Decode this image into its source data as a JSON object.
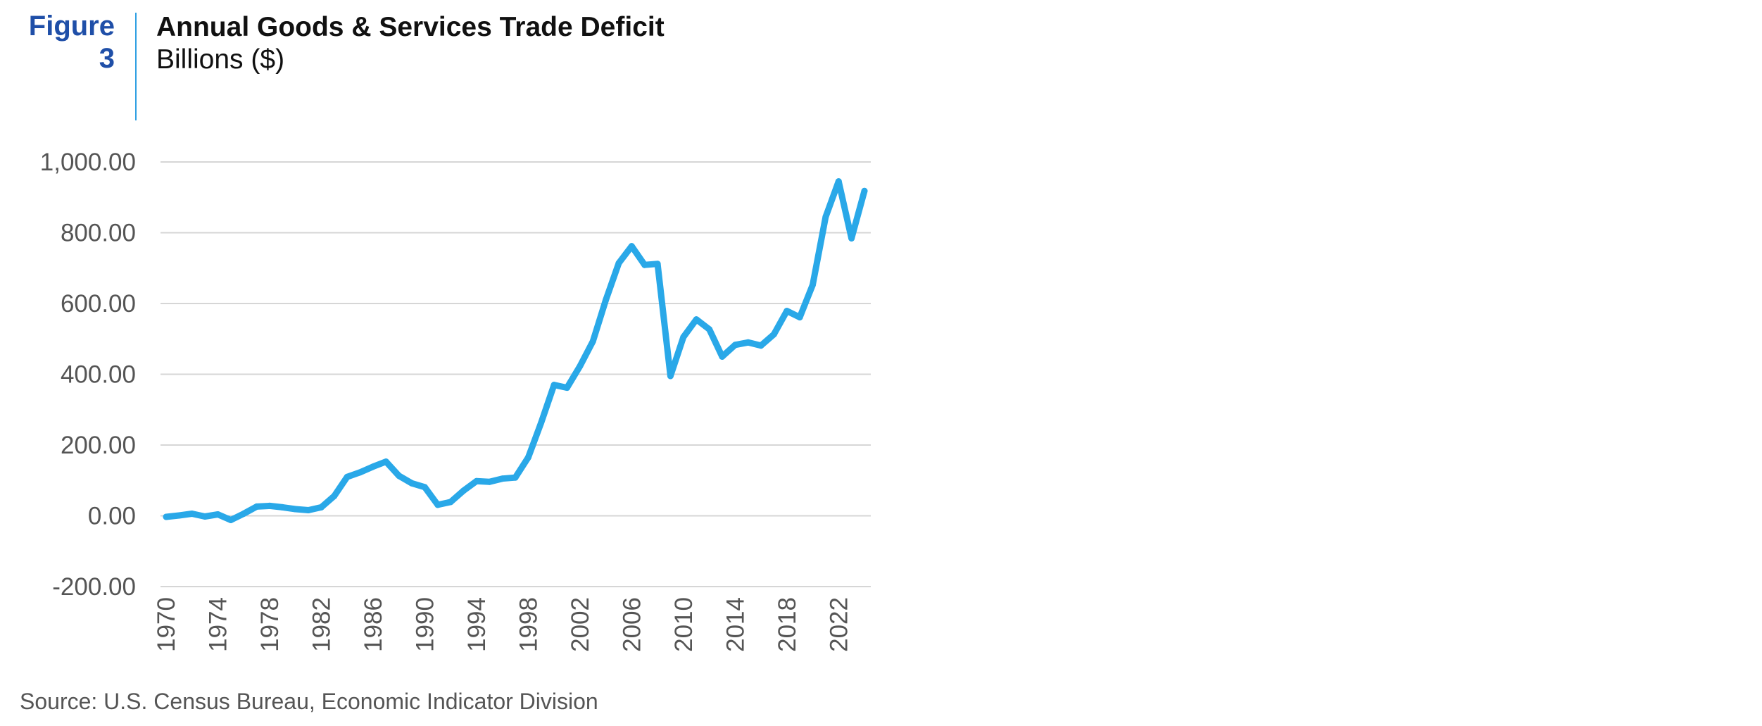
{
  "header": {
    "figure_label": "Figure",
    "figure_number": "3",
    "title": "Annual Goods & Services Trade Deficit",
    "subtitle": "Billions ($)"
  },
  "source": "Source: U.S. Census Bureau, Economic Indicator Division",
  "colors": {
    "line": "#29a8e8",
    "figure_label": "#1f4fa8",
    "grid": "#d6d6d6",
    "axis_text": "#555555"
  },
  "chart_data": {
    "type": "line",
    "title": "Annual Goods & Services Trade Deficit",
    "subtitle": "Billions ($)",
    "ylim": [
      -200,
      1000
    ],
    "y_ticks": [
      1000,
      800,
      600,
      400,
      200,
      0,
      -200
    ],
    "y_tick_labels": [
      "1,000.00",
      "800.00",
      "600.00",
      "400.00",
      "200.00",
      "0.00",
      "-200.00"
    ],
    "x_ticks": [
      1970,
      1974,
      1978,
      1982,
      1986,
      1990,
      1994,
      1998,
      2002,
      2006,
      2010,
      2014,
      2018,
      2022
    ],
    "x_tick_labels": [
      "1970",
      "1974",
      "1978",
      "1982",
      "1986",
      "1990",
      "1994",
      "1998",
      "2002",
      "2006",
      "2010",
      "2014",
      "2018",
      "2022"
    ],
    "grid": "horizontal",
    "legend": "none",
    "series": [
      {
        "x": [
          1970,
          1971,
          1972,
          1973,
          1974,
          1975,
          1976,
          1977,
          1978,
          1979,
          1980,
          1981,
          1982,
          1983,
          1984,
          1985,
          1986,
          1987,
          1988,
          1989,
          1990,
          1991,
          1992,
          1993,
          1994,
          1995,
          1996,
          1997,
          1998,
          1999,
          2000,
          2001,
          2002,
          2003,
          2004,
          2005,
          2006,
          2007,
          2008,
          2009,
          2010,
          2011,
          2012,
          2013,
          2014,
          2015,
          2016,
          2017,
          2018,
          2019,
          2020,
          2021,
          2022,
          2023,
          2024
        ],
        "values": [
          -3,
          1,
          6,
          -2,
          4,
          -12,
          6,
          26,
          28,
          24,
          19,
          16,
          24,
          56,
          110,
          123,
          139,
          153,
          113,
          92,
          81,
          31,
          39,
          71,
          98,
          96,
          105,
          108,
          165,
          263,
          370,
          362,
          423,
          493,
          610,
          714,
          762,
          709,
          712,
          395,
          505,
          555,
          527,
          450,
          483,
          490,
          481,
          513,
          579,
          561,
          653,
          845,
          945,
          784,
          918
        ]
      }
    ]
  }
}
